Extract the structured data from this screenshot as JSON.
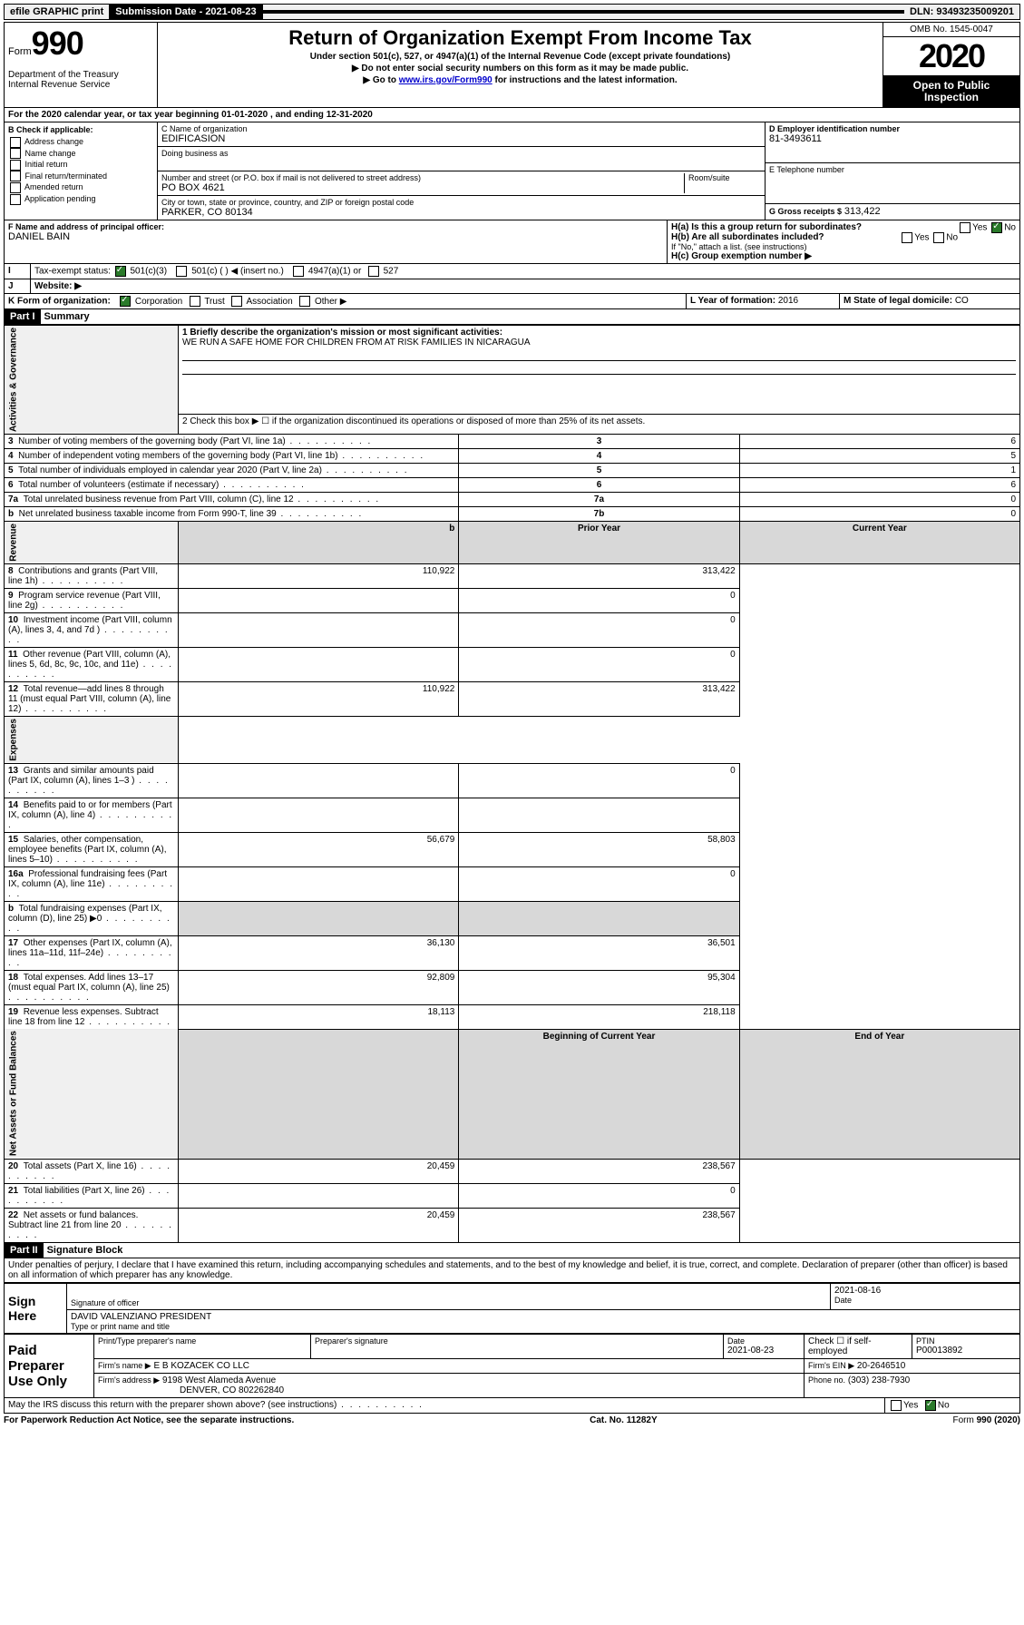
{
  "topbar": {
    "efile": "efile GRAPHIC print",
    "submission_label": "Submission Date - 2021-08-23",
    "dln": "DLN: 93493235009201"
  },
  "header": {
    "form_word": "Form",
    "form_no": "990",
    "dept": "Department of the Treasury\nInternal Revenue Service",
    "title": "Return of Organization Exempt From Income Tax",
    "sub1": "Under section 501(c), 527, or 4947(a)(1) of the Internal Revenue Code (except private foundations)",
    "sub2": "▶ Do not enter social security numbers on this form as it may be made public.",
    "sub3_pre": "▶ Go to ",
    "sub3_link": "www.irs.gov/Form990",
    "sub3_post": " for instructions and the latest information.",
    "omb": "OMB No. 1545-0047",
    "year": "2020",
    "open_public": "Open to Public Inspection"
  },
  "periodA": {
    "text_pre": "For the 2020 calendar year, or tax year beginning ",
    "begin": "01-01-2020",
    "mid": " , and ending ",
    "end": "12-31-2020"
  },
  "checkB": {
    "label": "B Check if applicable:",
    "opts": [
      "Address change",
      "Name change",
      "Initial return",
      "Final return/terminated",
      "Amended return",
      "Application pending"
    ]
  },
  "blockC": {
    "name_label": "C Name of organization",
    "name": "EDIFICASION",
    "dba_label": "Doing business as",
    "addr_label": "Number and street (or P.O. box if mail is not delivered to street address)",
    "room_label": "Room/suite",
    "addr": "PO BOX 4621",
    "city_label": "City or town, state or province, country, and ZIP or foreign postal code",
    "city": "PARKER, CO  80134"
  },
  "blockD": {
    "label": "D Employer identification number",
    "value": "81-3493611"
  },
  "blockE": {
    "label": "E Telephone number",
    "value": ""
  },
  "blockG": {
    "label": "G Gross receipts $",
    "value": "313,422"
  },
  "blockF": {
    "label": "F  Name and address of principal officer:",
    "value": "DANIEL BAIN"
  },
  "blockH": {
    "a_label": "H(a)  Is this a group return for subordinates?",
    "b_label": "H(b)  Are all subordinates included?",
    "b_note": "If \"No,\" attach a list. (see instructions)",
    "c_label": "H(c)  Group exemption number ▶",
    "yes": "Yes",
    "no": "No"
  },
  "taxExempt": {
    "label": "Tax-exempt status:",
    "opt501c3": "501(c)(3)",
    "opt501c": "501(c) (  ) ◀ (insert no.)",
    "opt4947": "4947(a)(1) or",
    "opt527": "527"
  },
  "websiteJ": {
    "label": "Website: ▶",
    "value": ""
  },
  "lineK": {
    "label": "K Form of organization:",
    "opts": [
      "Corporation",
      "Trust",
      "Association",
      "Other ▶"
    ],
    "l_label": "L Year of formation:",
    "l_val": "2016",
    "m_label": "M State of legal domicile:",
    "m_val": "CO"
  },
  "part1": {
    "hdr": "Part I",
    "title": "Summary",
    "q1_label": "1  Briefly describe the organization's mission or most significant activities:",
    "q1_text": "WE RUN A SAFE HOME FOR CHILDREN FROM AT RISK FAMILIES IN NICARAGUA",
    "q2_label": "2   Check this box ▶ ☐  if the organization discontinued its operations or disposed of more than 25% of its net assets.",
    "rows_gov": [
      {
        "n": "3",
        "t": "Number of voting members of the governing body (Part VI, line 1a)",
        "c": "3",
        "v": "6"
      },
      {
        "n": "4",
        "t": "Number of independent voting members of the governing body (Part VI, line 1b)",
        "c": "4",
        "v": "5"
      },
      {
        "n": "5",
        "t": "Total number of individuals employed in calendar year 2020 (Part V, line 2a)",
        "c": "5",
        "v": "1"
      },
      {
        "n": "6",
        "t": "Total number of volunteers (estimate if necessary)",
        "c": "6",
        "v": "6"
      },
      {
        "n": "7a",
        "t": "Total unrelated business revenue from Part VIII, column (C), line 12",
        "c": "7a",
        "v": "0"
      },
      {
        "n": "b",
        "t": "Net unrelated business taxable income from Form 990-T, line 39",
        "c": "7b",
        "v": "0"
      }
    ],
    "col_prior": "Prior Year",
    "col_current": "Current Year",
    "rows_rev": [
      {
        "n": "8",
        "t": "Contributions and grants (Part VIII, line 1h)",
        "p": "110,922",
        "c": "313,422"
      },
      {
        "n": "9",
        "t": "Program service revenue (Part VIII, line 2g)",
        "p": "",
        "c": "0"
      },
      {
        "n": "10",
        "t": "Investment income (Part VIII, column (A), lines 3, 4, and 7d )",
        "p": "",
        "c": "0"
      },
      {
        "n": "11",
        "t": "Other revenue (Part VIII, column (A), lines 5, 6d, 8c, 9c, 10c, and 11e)",
        "p": "",
        "c": "0"
      },
      {
        "n": "12",
        "t": "Total revenue—add lines 8 through 11 (must equal Part VIII, column (A), line 12)",
        "p": "110,922",
        "c": "313,422"
      }
    ],
    "rows_exp": [
      {
        "n": "13",
        "t": "Grants and similar amounts paid (Part IX, column (A), lines 1–3 )",
        "p": "",
        "c": "0"
      },
      {
        "n": "14",
        "t": "Benefits paid to or for members (Part IX, column (A), line 4)",
        "p": "",
        "c": ""
      },
      {
        "n": "15",
        "t": "Salaries, other compensation, employee benefits (Part IX, column (A), lines 5–10)",
        "p": "56,679",
        "c": "58,803"
      },
      {
        "n": "16a",
        "t": "Professional fundraising fees (Part IX, column (A), line 11e)",
        "p": "",
        "c": "0"
      },
      {
        "n": "b",
        "t": "Total fundraising expenses (Part IX, column (D), line 25) ▶0",
        "p": "shade",
        "c": "shade"
      },
      {
        "n": "17",
        "t": "Other expenses (Part IX, column (A), lines 11a–11d, 11f–24e)",
        "p": "36,130",
        "c": "36,501"
      },
      {
        "n": "18",
        "t": "Total expenses. Add lines 13–17 (must equal Part IX, column (A), line 25)",
        "p": "92,809",
        "c": "95,304"
      },
      {
        "n": "19",
        "t": "Revenue less expenses. Subtract line 18 from line 12",
        "p": "18,113",
        "c": "218,118"
      }
    ],
    "col_begin": "Beginning of Current Year",
    "col_end": "End of Year",
    "rows_net": [
      {
        "n": "20",
        "t": "Total assets (Part X, line 16)",
        "p": "20,459",
        "c": "238,567"
      },
      {
        "n": "21",
        "t": "Total liabilities (Part X, line 26)",
        "p": "",
        "c": "0"
      },
      {
        "n": "22",
        "t": "Net assets or fund balances. Subtract line 21 from line 20",
        "p": "20,459",
        "c": "238,567"
      }
    ],
    "vlabels": {
      "gov": "Activities & Governance",
      "rev": "Revenue",
      "exp": "Expenses",
      "net": "Net Assets or Fund Balances"
    }
  },
  "part2": {
    "hdr": "Part II",
    "title": "Signature Block",
    "perjury": "Under penalties of perjury, I declare that I have examined this return, including accompanying schedules and statements, and to the best of my knowledge and belief, it is true, correct, and complete. Declaration of preparer (other than officer) is based on all information of which preparer has any knowledge.",
    "sign_here": "Sign Here",
    "sig_officer": "Signature of officer",
    "sig_date": "2021-08-16",
    "date_label": "Date",
    "officer_name": "DAVID VALENZIANO  PRESIDENT",
    "officer_sub": "Type or print name and title",
    "paid": "Paid Preparer Use Only",
    "prep_name_label": "Print/Type preparer's name",
    "prep_sig_label": "Preparer's signature",
    "prep_date_label": "Date",
    "prep_date": "2021-08-23",
    "check_se": "Check ☐ if self-employed",
    "ptin_label": "PTIN",
    "ptin": "P00013892",
    "firm_name_label": "Firm's name    ▶",
    "firm_name": "E B KOZACEK CO LLC",
    "firm_ein_label": "Firm's EIN ▶",
    "firm_ein": "20-2646510",
    "firm_addr_label": "Firm's address ▶",
    "firm_addr1": "9198 West Alameda Avenue",
    "firm_addr2": "DENVER, CO  802262840",
    "phone_label": "Phone no.",
    "phone": "(303) 238-7930",
    "discuss": "May the IRS discuss this return with the preparer shown above? (see instructions)",
    "yes": "Yes",
    "no": "No"
  },
  "footer": {
    "pra": "For Paperwork Reduction Act Notice, see the separate instructions.",
    "cat": "Cat. No. 11282Y",
    "form": "Form 990 (2020)"
  }
}
